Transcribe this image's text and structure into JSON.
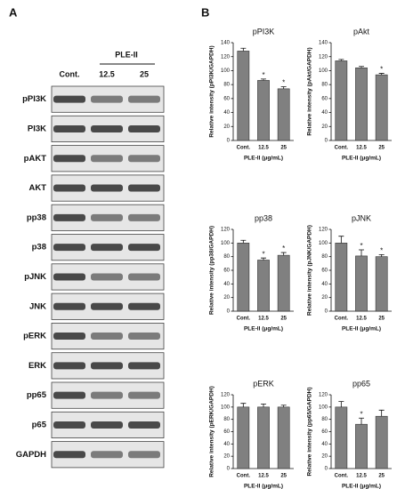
{
  "panel_a": {
    "label": "A",
    "treatment": "PLE-II",
    "lanes": [
      "Cont.",
      "12.5",
      "25"
    ],
    "proteins": [
      "pPI3K",
      "PI3K",
      "pAKT",
      "AKT",
      "pp38",
      "p38",
      "pJNK",
      "JNK",
      "pERK",
      "ERK",
      "pp65",
      "p65",
      "GAPDH"
    ]
  },
  "panel_b_label": "B",
  "chart_data": [
    {
      "type": "bar",
      "title": "pPI3K",
      "ylabel": "Relative intensity (pPI3K/GAPDH)",
      "xlabel": "PLE-II (μg/mL)",
      "categories": [
        "Cont.",
        "12.5",
        "25"
      ],
      "values": [
        128,
        86,
        74
      ],
      "errors": [
        4,
        2,
        3
      ],
      "significance": [
        null,
        "*",
        "*"
      ],
      "color": "#808080",
      "ylim": [
        0,
        140
      ],
      "yticks": [
        0,
        20,
        40,
        60,
        80,
        100,
        120,
        140
      ]
    },
    {
      "type": "bar",
      "title": "pAkt",
      "ylabel": "Relative intensity (pAkt/GAPDH)",
      "xlabel": "PLE-II (μg/mL)",
      "categories": [
        "Cont.",
        "12.5",
        "25"
      ],
      "values": [
        114,
        104,
        94
      ],
      "errors": [
        2,
        2,
        2
      ],
      "significance": [
        null,
        null,
        "*"
      ],
      "color": "#808080",
      "ylim": [
        0,
        140
      ],
      "yticks": [
        0,
        20,
        40,
        60,
        80,
        100,
        120,
        140
      ]
    },
    {
      "type": "bar",
      "title": "pp38",
      "ylabel": "Relative intensity (pp38/GAPDH)",
      "xlabel": "PLE-II (μg/mL)",
      "categories": [
        "Cont.",
        "12.5",
        "25"
      ],
      "values": [
        100,
        75,
        82
      ],
      "errors": [
        4,
        3,
        4
      ],
      "significance": [
        null,
        "*",
        "*"
      ],
      "color": "#808080",
      "ylim": [
        0,
        120
      ],
      "yticks": [
        0,
        20,
        40,
        60,
        80,
        100,
        120
      ]
    },
    {
      "type": "bar",
      "title": "pJNK",
      "ylabel": "Relative intensity (pJNK/GAPDH)",
      "xlabel": "PLE-II (μg/mL)",
      "categories": [
        "Cont.",
        "12.5",
        "25"
      ],
      "values": [
        100,
        81,
        80
      ],
      "errors": [
        10,
        9,
        3
      ],
      "significance": [
        null,
        "*",
        "*"
      ],
      "color": "#808080",
      "ylim": [
        0,
        120
      ],
      "yticks": [
        0,
        20,
        40,
        60,
        80,
        100,
        120
      ]
    },
    {
      "type": "bar",
      "title": "pERK",
      "ylabel": "Relative intensity (pERK/GAPDH)",
      "xlabel": "PLE-II (μg/mL)",
      "categories": [
        "Cont.",
        "12.5",
        "25"
      ],
      "values": [
        100,
        100,
        100
      ],
      "errors": [
        6,
        5,
        3
      ],
      "significance": [
        null,
        null,
        null
      ],
      "color": "#808080",
      "ylim": [
        0,
        120
      ],
      "yticks": [
        0,
        20,
        40,
        60,
        80,
        100,
        120
      ]
    },
    {
      "type": "bar",
      "title": "pp65",
      "ylabel": "Relative intensity (pp65/GAPDH)",
      "xlabel": "PLE-II (μg/mL)",
      "categories": [
        "Cont.",
        "12.5",
        "25"
      ],
      "values": [
        100,
        72,
        85
      ],
      "errors": [
        9,
        10,
        10
      ],
      "significance": [
        null,
        "*",
        null
      ],
      "color": "#808080",
      "ylim": [
        0,
        120
      ],
      "yticks": [
        0,
        20,
        40,
        60,
        80,
        100,
        120
      ]
    }
  ]
}
